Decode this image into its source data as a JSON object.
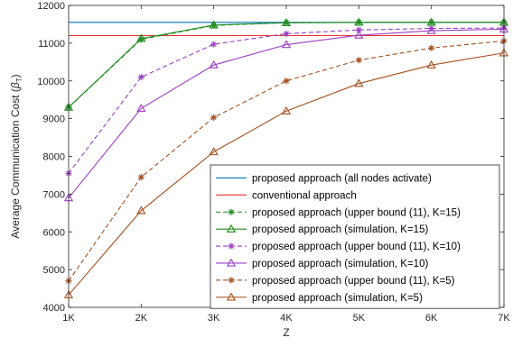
{
  "chart_data": {
    "type": "line",
    "xlabel": "Z",
    "ylabel": "Average Communication Cost (",
    "ylabel_symbol": "β",
    "ylabel_subscript": "T",
    "ylabel_close": ")",
    "x": [
      1000,
      2000,
      3000,
      4000,
      5000,
      6000,
      7000
    ],
    "x_tick_labels": [
      "1K",
      "2K",
      "3K",
      "4K",
      "5K",
      "6K",
      "7K"
    ],
    "xlim": [
      1000,
      7000
    ],
    "ylim": [
      4000,
      12000
    ],
    "y_ticks": [
      4000,
      5000,
      6000,
      7000,
      8000,
      9000,
      10000,
      11000,
      12000
    ],
    "grid": false,
    "legend_position": "bottom-right",
    "series": [
      {
        "name": "proposed approach (all nodes activate)",
        "color": "#0072BD",
        "style": "solid",
        "marker": "none",
        "values": [
          11550,
          11550,
          11550,
          11550,
          11550,
          11550,
          11550
        ]
      },
      {
        "name": "conventional approach",
        "color": "#E83030",
        "style": "solid",
        "marker": "none",
        "values": [
          11200,
          11200,
          11200,
          11200,
          11200,
          11200,
          11200
        ]
      },
      {
        "name": "proposed approach (upper bound (11), K=15)",
        "color": "#1E8C1E",
        "style": "dashed",
        "marker": "asterisk",
        "values": [
          9300,
          11100,
          11470,
          11540,
          11550,
          11550,
          11550
        ]
      },
      {
        "name": "proposed approach (simulation, K=15)",
        "color": "#1E8C1E",
        "style": "solid",
        "marker": "triangle",
        "values": [
          9300,
          11120,
          11480,
          11540,
          11550,
          11550,
          11550
        ]
      },
      {
        "name": "proposed approach (upper bound (11), K=10)",
        "color": "#9B3FC4",
        "style": "dashed",
        "marker": "asterisk",
        "values": [
          7550,
          10100,
          10970,
          11250,
          11350,
          11390,
          11400
        ]
      },
      {
        "name": "proposed approach (simulation, K=10)",
        "color": "#9B3FC4",
        "style": "solid",
        "marker": "triangle",
        "values": [
          6900,
          9270,
          10420,
          10960,
          11210,
          11330,
          11370
        ]
      },
      {
        "name": "proposed approach (upper bound (11), K=5)",
        "color": "#A5501E",
        "style": "dashed",
        "marker": "asterisk",
        "values": [
          4700,
          7450,
          9030,
          10000,
          10550,
          10870,
          11060
        ]
      },
      {
        "name": "proposed approach (simulation, K=5)",
        "color": "#A5501E",
        "style": "solid",
        "marker": "triangle",
        "values": [
          4330,
          6560,
          8120,
          9200,
          9930,
          10420,
          10740
        ]
      }
    ]
  }
}
